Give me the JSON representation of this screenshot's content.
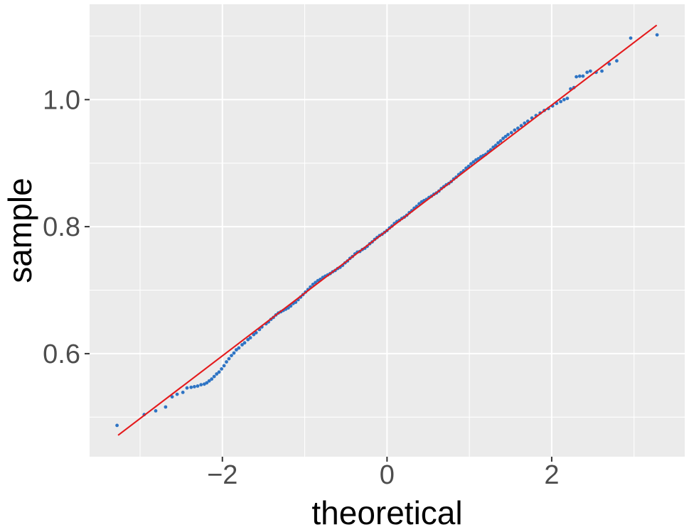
{
  "colors": {
    "figure_background": "#FFFFFF",
    "panel_background": "#EBEBEB",
    "gridline": "#FFFFFF",
    "tick_mark": "#333333",
    "tick_label": "#4D4D4D",
    "axis_title": "#000000",
    "point": "#2E74C4",
    "reference_line": "#E41A1C"
  },
  "chart_data": {
    "type": "scatter",
    "subtype": "qq-plot",
    "title": "",
    "xlabel": "theoretical",
    "ylabel": "sample",
    "grid": "on",
    "legend": "none",
    "x_axis": {
      "range": [
        -3.613,
        3.616
      ],
      "major_ticks": [
        {
          "value": -2,
          "label": "−2"
        },
        {
          "value": 0,
          "label": "0"
        },
        {
          "value": 2,
          "label": "2"
        }
      ],
      "minor_gridlines": [
        -3,
        -1,
        1,
        3
      ]
    },
    "y_axis": {
      "range": [
        0.4377,
        1.1502
      ],
      "major_ticks": [
        {
          "value": 0.6,
          "label": "0.6"
        },
        {
          "value": 0.8,
          "label": "0.8"
        },
        {
          "value": 1.0,
          "label": "1.0"
        }
      ],
      "minor_gridlines": [
        0.5,
        0.7,
        0.9,
        1.1
      ]
    },
    "series": [
      {
        "name": "sample-quantiles",
        "type": "points",
        "color": "#2E74C4",
        "points": [
          [
            -3.28,
            0.487
          ],
          [
            -2.95,
            0.504
          ],
          [
            -2.81,
            0.51
          ],
          [
            -2.69,
            0.516
          ],
          [
            -2.61,
            0.532
          ],
          [
            -2.55,
            0.536
          ],
          [
            -2.48,
            0.539
          ],
          [
            -2.43,
            0.546
          ],
          [
            -2.38,
            0.547
          ],
          [
            -2.34,
            0.548
          ],
          [
            -2.3,
            0.549
          ],
          [
            -2.26,
            0.551
          ],
          [
            -2.22,
            0.552
          ],
          [
            -2.19,
            0.554
          ],
          [
            -2.16,
            0.557
          ],
          [
            -2.13,
            0.56
          ],
          [
            -2.1,
            0.564
          ],
          [
            -2.07,
            0.568
          ],
          [
            -2.04,
            0.571
          ],
          [
            -2.01,
            0.576
          ],
          [
            -1.98,
            0.581
          ],
          [
            -1.95,
            0.587
          ],
          [
            -1.92,
            0.592
          ],
          [
            -1.89,
            0.597
          ],
          [
            -1.86,
            0.601
          ],
          [
            -1.83,
            0.606
          ],
          [
            -1.8,
            0.609
          ],
          [
            -1.76,
            0.614
          ],
          [
            -1.73,
            0.617
          ],
          [
            -1.69,
            0.622
          ],
          [
            -1.66,
            0.625
          ],
          [
            -1.62,
            0.63
          ],
          [
            -1.59,
            0.633
          ],
          [
            -1.55,
            0.638
          ],
          [
            -1.52,
            0.642
          ],
          [
            -1.47,
            0.647
          ],
          [
            -1.44,
            0.65
          ],
          [
            -1.41,
            0.654
          ],
          [
            -1.38,
            0.657
          ],
          [
            -1.35,
            0.661
          ],
          [
            -1.32,
            0.664
          ],
          [
            -1.29,
            0.666
          ],
          [
            -1.26,
            0.668
          ],
          [
            -1.23,
            0.67
          ],
          [
            -1.2,
            0.672
          ],
          [
            -1.17,
            0.675
          ],
          [
            -1.14,
            0.679
          ],
          [
            -1.11,
            0.681
          ],
          [
            -1.08,
            0.685
          ],
          [
            -1.05,
            0.689
          ],
          [
            -1.02,
            0.693
          ],
          [
            -0.99,
            0.697
          ],
          [
            -0.96,
            0.701
          ],
          [
            -0.93,
            0.705
          ],
          [
            -0.9,
            0.709
          ],
          [
            -0.87,
            0.712
          ],
          [
            -0.84,
            0.715
          ],
          [
            -0.81,
            0.717
          ],
          [
            -0.78,
            0.72
          ],
          [
            -0.75,
            0.722
          ],
          [
            -0.72,
            0.724
          ],
          [
            -0.69,
            0.726
          ],
          [
            -0.66,
            0.729
          ],
          [
            -0.63,
            0.731
          ],
          [
            -0.6,
            0.734
          ],
          [
            -0.57,
            0.736
          ],
          [
            -0.54,
            0.739
          ],
          [
            -0.51,
            0.743
          ],
          [
            -0.48,
            0.746
          ],
          [
            -0.45,
            0.75
          ],
          [
            -0.42,
            0.753
          ],
          [
            -0.39,
            0.757
          ],
          [
            -0.36,
            0.76
          ],
          [
            -0.33,
            0.761
          ],
          [
            -0.3,
            0.764
          ],
          [
            -0.27,
            0.766
          ],
          [
            -0.24,
            0.769
          ],
          [
            -0.21,
            0.773
          ],
          [
            -0.18,
            0.776
          ],
          [
            -0.15,
            0.78
          ],
          [
            -0.12,
            0.783
          ],
          [
            -0.09,
            0.786
          ],
          [
            -0.06,
            0.788
          ],
          [
            -0.03,
            0.791
          ],
          [
            0.0,
            0.794
          ],
          [
            0.03,
            0.798
          ],
          [
            0.06,
            0.801
          ],
          [
            0.09,
            0.805
          ],
          [
            0.12,
            0.808
          ],
          [
            0.15,
            0.81
          ],
          [
            0.18,
            0.813
          ],
          [
            0.21,
            0.815
          ],
          [
            0.24,
            0.818
          ],
          [
            0.27,
            0.822
          ],
          [
            0.3,
            0.825
          ],
          [
            0.33,
            0.829
          ],
          [
            0.36,
            0.832
          ],
          [
            0.39,
            0.836
          ],
          [
            0.42,
            0.839
          ],
          [
            0.45,
            0.841
          ],
          [
            0.48,
            0.843
          ],
          [
            0.51,
            0.846
          ],
          [
            0.54,
            0.848
          ],
          [
            0.57,
            0.851
          ],
          [
            0.6,
            0.853
          ],
          [
            0.63,
            0.856
          ],
          [
            0.66,
            0.86
          ],
          [
            0.69,
            0.863
          ],
          [
            0.72,
            0.866
          ],
          [
            0.75,
            0.868
          ],
          [
            0.78,
            0.871
          ],
          [
            0.81,
            0.875
          ],
          [
            0.84,
            0.878
          ],
          [
            0.87,
            0.882
          ],
          [
            0.9,
            0.885
          ],
          [
            0.93,
            0.888
          ],
          [
            0.96,
            0.892
          ],
          [
            0.99,
            0.895
          ],
          [
            1.02,
            0.899
          ],
          [
            1.05,
            0.902
          ],
          [
            1.08,
            0.905
          ],
          [
            1.11,
            0.907
          ],
          [
            1.14,
            0.91
          ],
          [
            1.17,
            0.912
          ],
          [
            1.2,
            0.914
          ],
          [
            1.23,
            0.918
          ],
          [
            1.26,
            0.921
          ],
          [
            1.29,
            0.925
          ],
          [
            1.32,
            0.928
          ],
          [
            1.35,
            0.932
          ],
          [
            1.38,
            0.935
          ],
          [
            1.41,
            0.939
          ],
          [
            1.44,
            0.942
          ],
          [
            1.47,
            0.945
          ],
          [
            1.51,
            0.948
          ],
          [
            1.55,
            0.952
          ],
          [
            1.59,
            0.955
          ],
          [
            1.63,
            0.959
          ],
          [
            1.67,
            0.963
          ],
          [
            1.71,
            0.966
          ],
          [
            1.76,
            0.971
          ],
          [
            1.81,
            0.975
          ],
          [
            1.86,
            0.979
          ],
          [
            1.91,
            0.983
          ],
          [
            1.96,
            0.986
          ],
          [
            2.01,
            0.99
          ],
          [
            2.06,
            0.994
          ],
          [
            2.11,
            0.997
          ],
          [
            2.15,
            1.0
          ],
          [
            2.19,
            1.002
          ],
          [
            2.23,
            1.017
          ],
          [
            2.27,
            1.019
          ],
          [
            2.3,
            1.036
          ],
          [
            2.34,
            1.037
          ],
          [
            2.38,
            1.037
          ],
          [
            2.43,
            1.043
          ],
          [
            2.47,
            1.045
          ],
          [
            2.54,
            1.043
          ],
          [
            2.61,
            1.045
          ],
          [
            2.7,
            1.056
          ],
          [
            2.79,
            1.061
          ],
          [
            2.96,
            1.097
          ],
          [
            3.28,
            1.102
          ]
        ]
      },
      {
        "name": "qq-reference-line",
        "type": "line",
        "color": "#E41A1C",
        "x": [
          -3.267,
          3.276
        ],
        "y": [
          0.4715,
          1.1173
        ],
        "slope": 0.0987,
        "intercept": 0.794
      }
    ]
  }
}
